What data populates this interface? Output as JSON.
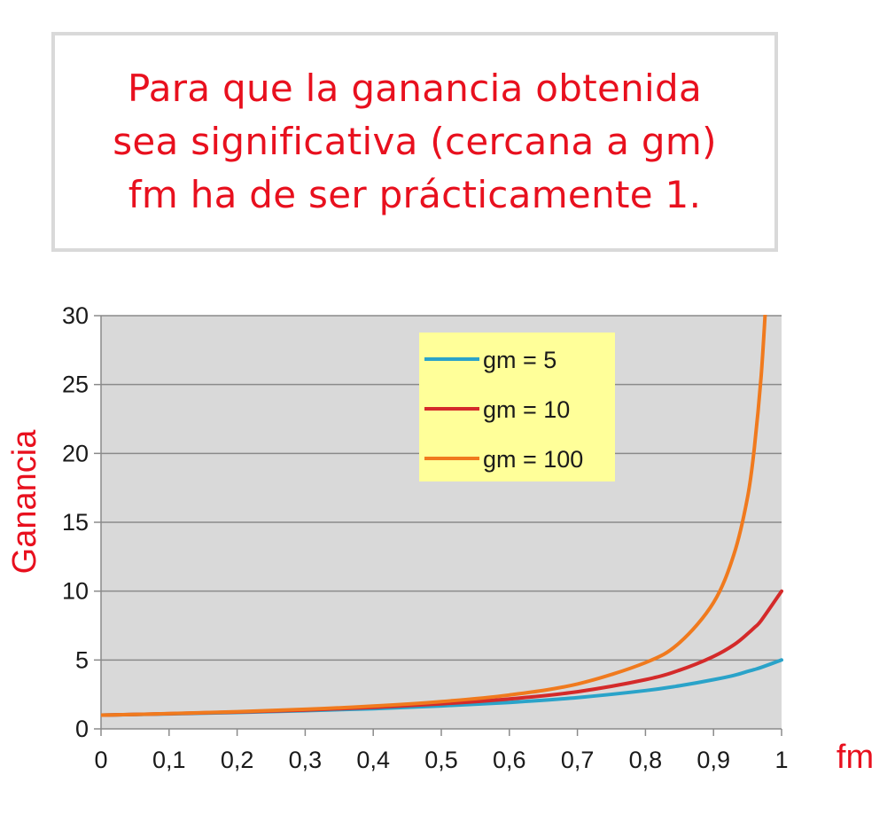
{
  "callout": {
    "lines": [
      "Para que la ganancia obtenida",
      "sea significativa (cercana a gm)",
      "fm ha de ser prácticamente 1."
    ]
  },
  "chart_data": {
    "type": "line",
    "xlabel": "fm",
    "ylabel": "Ganancia",
    "xlim": [
      0,
      1
    ],
    "ylim": [
      0,
      30
    ],
    "x_ticks": [
      "0",
      "0,1",
      "0,2",
      "0,3",
      "0,4",
      "0,5",
      "0,6",
      "0,7",
      "0,8",
      "0,9",
      "1"
    ],
    "y_ticks": [
      "0",
      "5",
      "10",
      "15",
      "20",
      "25",
      "30"
    ],
    "grid": "horizontal",
    "legend_position": "top-right",
    "x": [
      0,
      0.1,
      0.2,
      0.3,
      0.4,
      0.5,
      0.6,
      0.7,
      0.8,
      0.85,
      0.9,
      0.93,
      0.95,
      0.96,
      0.97,
      1
    ],
    "series": [
      {
        "name": "gm = 5",
        "color": "#2aa3c9",
        "values": [
          1,
          1.09,
          1.19,
          1.32,
          1.47,
          1.67,
          1.92,
          2.27,
          2.78,
          3.13,
          3.57,
          3.88,
          4.17,
          4.31,
          4.46,
          5
        ]
      },
      {
        "name": "gm = 10",
        "color": "#d42a2a",
        "values": [
          1,
          1.1,
          1.22,
          1.37,
          1.56,
          1.82,
          2.17,
          2.7,
          3.57,
          4.26,
          5.26,
          6.1,
          6.9,
          7.35,
          7.87,
          10
        ]
      },
      {
        "name": "gm = 100",
        "color": "#f07a1e",
        "values": [
          1,
          1.11,
          1.25,
          1.42,
          1.66,
          1.98,
          2.46,
          3.26,
          4.81,
          6.25,
          9.17,
          12.66,
          16.81,
          20.41,
          25.64,
          null
        ]
      }
    ]
  }
}
